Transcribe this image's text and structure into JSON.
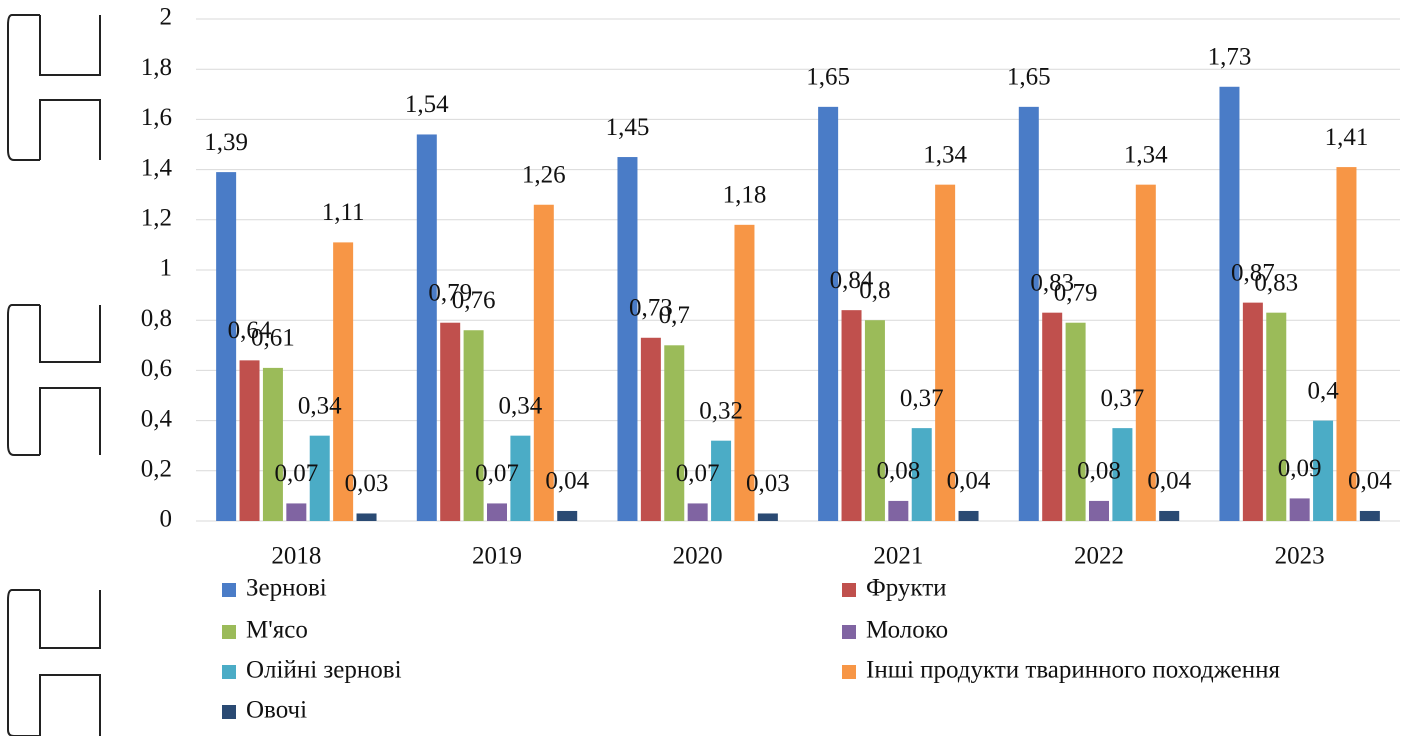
{
  "chart_data": {
    "type": "bar",
    "categories": [
      "2018",
      "2019",
      "2020",
      "2021",
      "2022",
      "2023"
    ],
    "series": [
      {
        "name": "Зернові",
        "color": "#4a7cc7",
        "values": [
          1.39,
          1.54,
          1.45,
          1.65,
          1.65,
          1.73
        ],
        "value_labels": [
          "1,39",
          "1,54",
          "1,45",
          "1,65",
          "1,65",
          "1,73"
        ]
      },
      {
        "name": "Фрукти",
        "color": "#c0504d",
        "values": [
          0.64,
          0.79,
          0.73,
          0.84,
          0.83,
          0.87
        ],
        "value_labels": [
          "0,64",
          "0,79",
          "0,73",
          "0,84",
          "0,83",
          "0,87"
        ]
      },
      {
        "name": "М'ясо",
        "color": "#9bbb59",
        "values": [
          0.61,
          0.76,
          0.7,
          0.8,
          0.79,
          0.83
        ],
        "value_labels": [
          "0,61",
          "0,76",
          "0,7",
          "0,8",
          "0,79",
          "0,83"
        ]
      },
      {
        "name": "Молоко",
        "color": "#8064a2",
        "values": [
          0.07,
          0.07,
          0.07,
          0.08,
          0.08,
          0.09
        ],
        "value_labels": [
          "0,07",
          "0,07",
          "0,07",
          "0,08",
          "0,08",
          "0,09"
        ]
      },
      {
        "name": "Олійні зернові",
        "color": "#4bacc6",
        "values": [
          0.34,
          0.34,
          0.32,
          0.37,
          0.37,
          0.4
        ],
        "value_labels": [
          "0,34",
          "0,34",
          "0,32",
          "0,37",
          "0,37",
          "0,4"
        ]
      },
      {
        "name": "Інші продукти тваринного походження",
        "color": "#f79646",
        "values": [
          1.11,
          1.26,
          1.18,
          1.34,
          1.34,
          1.41
        ],
        "value_labels": [
          "1,11",
          "1,26",
          "1,18",
          "1,34",
          "1,34",
          "1,41"
        ]
      },
      {
        "name": "Овочі",
        "color": "#2a4a73",
        "values": [
          0.03,
          0.04,
          0.03,
          0.04,
          0.04,
          0.04
        ],
        "value_labels": [
          "0,03",
          "0,04",
          "0,03",
          "0,04",
          "0,04",
          "0,04"
        ]
      }
    ],
    "ylim": [
      0,
      2
    ],
    "yticks": [
      0,
      {
        "value": 0.2,
        "label": "0,2"
      },
      {
        "value": 0.4,
        "label": "0,4"
      },
      {
        "value": 0.6,
        "label": "0,6"
      },
      {
        "value": 0.8,
        "label": "0,8"
      },
      1,
      {
        "value": 1.2,
        "label": "1,2"
      },
      {
        "value": 1.4,
        "label": "1,4"
      },
      {
        "value": 1.6,
        "label": "1,6"
      },
      {
        "value": 1.8,
        "label": "1,8"
      },
      2
    ],
    "grid": true,
    "legend": "bottom"
  }
}
